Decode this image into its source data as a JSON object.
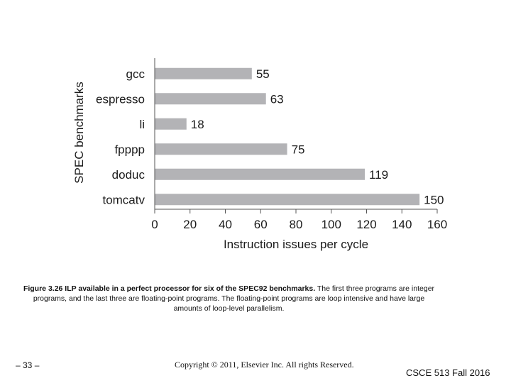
{
  "chart_data": {
    "type": "bar",
    "orientation": "horizontal",
    "categories": [
      "gcc",
      "espresso",
      "li",
      "fpppp",
      "doduc",
      "tomcatv"
    ],
    "values": [
      55,
      63,
      18,
      75,
      119,
      150
    ],
    "xlabel": "Instruction issues per cycle",
    "ylabel": "SPEC benchmarks",
    "xlim": [
      0,
      160
    ],
    "xticks": [
      0,
      20,
      40,
      60,
      80,
      100,
      120,
      140,
      160
    ],
    "bar_color": "#b3b3b6",
    "grid": false
  },
  "caption": {
    "bold": "Figure 3.26 ILP available in a perfect processor for six of the SPEC92 benchmarks.",
    "rest": " The first three programs are integer programs, and the last three are floating-point programs. The floating-point programs are loop intensive and have large amounts of loop-level parallelism."
  },
  "footer": {
    "slide_number": "– 33 –",
    "copyright": "Copyright © 2011, Elsevier Inc. All rights Reserved.",
    "course": "CSCE 513 Fall 2016"
  }
}
